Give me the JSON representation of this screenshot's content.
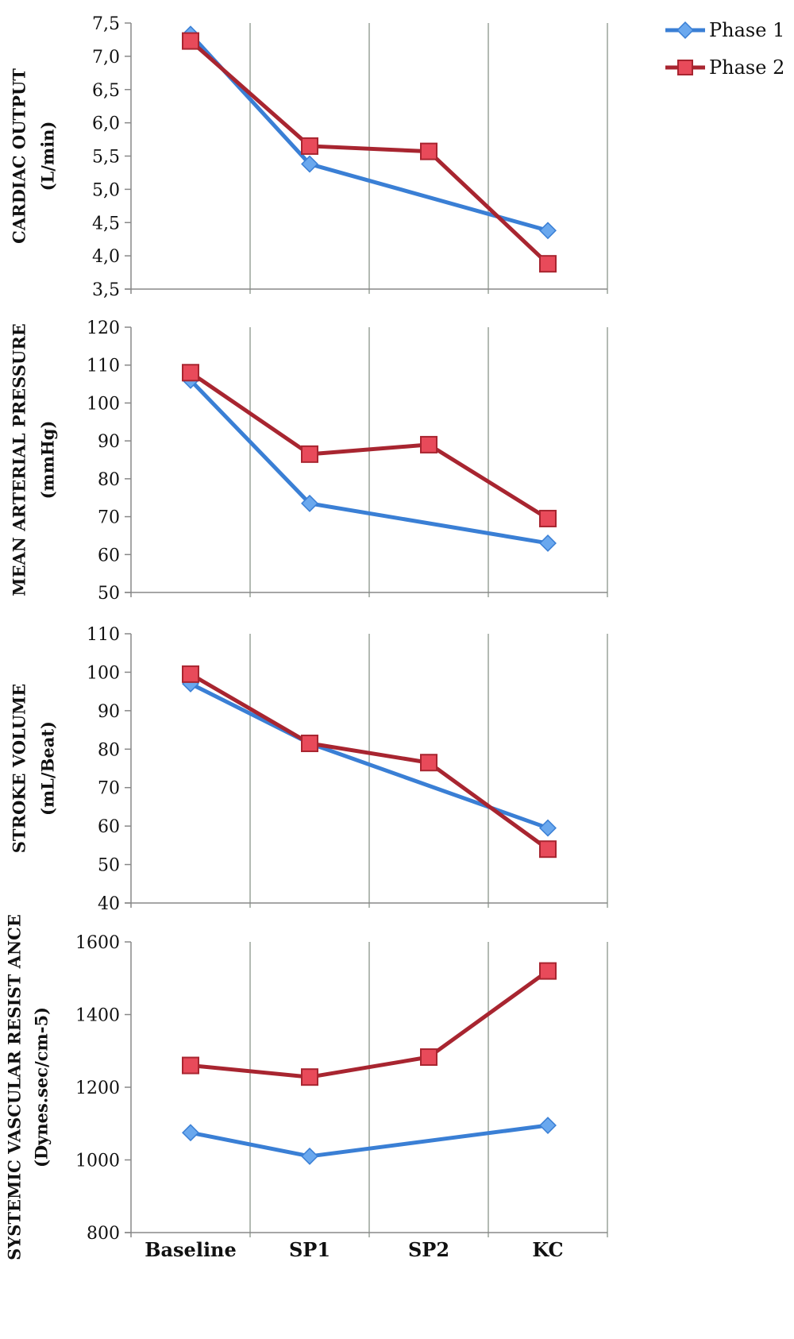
{
  "legend": [
    {
      "name": "Phase 1",
      "color": "#3a7fd5",
      "marker": "diamond"
    },
    {
      "name": "Phase 2",
      "color": "#a82530",
      "marker": "square"
    }
  ],
  "colors": {
    "grid": "#9aa39a",
    "axis": "#888888",
    "marker_blue": "#6aa8ee",
    "marker_red": "#e84a5a"
  },
  "chart_data": [
    {
      "type": "line",
      "categories": [
        "Baseline",
        "SP1",
        "SP2",
        "KC"
      ],
      "ylabel": [
        "CARDIAC OUTPUT",
        "(L/min)"
      ],
      "ylim": [
        3.5,
        7.5
      ],
      "yticks": [
        "3,5",
        "4,0",
        "4,5",
        "5,0",
        "5,5",
        "6,0",
        "6,5",
        "7,0",
        "7,5"
      ],
      "ytick_values": [
        3.5,
        4.0,
        4.5,
        5.0,
        5.5,
        6.0,
        6.5,
        7.0,
        7.5
      ],
      "show_category_labels": false,
      "series": [
        {
          "name": "Phase 1",
          "values": [
            7.33,
            5.38,
            null,
            4.38
          ]
        },
        {
          "name": "Phase 2",
          "values": [
            7.23,
            5.65,
            5.57,
            3.88
          ]
        }
      ]
    },
    {
      "type": "line",
      "categories": [
        "Baseline",
        "SP1",
        "SP2",
        "KC"
      ],
      "ylabel": [
        "MEAN ARTERIAL PRESSURE",
        "(mmHg)"
      ],
      "ylim": [
        50,
        120
      ],
      "yticks": [
        "50",
        "60",
        "70",
        "80",
        "90",
        "100",
        "110",
        "120"
      ],
      "ytick_values": [
        50,
        60,
        70,
        80,
        90,
        100,
        110,
        120
      ],
      "show_category_labels": false,
      "series": [
        {
          "name": "Phase 1",
          "values": [
            106,
            73.5,
            null,
            63
          ]
        },
        {
          "name": "Phase 2",
          "values": [
            108,
            86.5,
            89,
            69.5
          ]
        }
      ]
    },
    {
      "type": "line",
      "categories": [
        "Baseline",
        "SP1",
        "SP2",
        "KC"
      ],
      "ylabel": [
        "STROKE VOLUME",
        "(mL/Beat)"
      ],
      "ylim": [
        40,
        110
      ],
      "yticks": [
        "40",
        "50",
        "60",
        "70",
        "80",
        "90",
        "100",
        "110"
      ],
      "ytick_values": [
        40,
        50,
        60,
        70,
        80,
        90,
        100,
        110
      ],
      "show_category_labels": false,
      "series": [
        {
          "name": "Phase 1",
          "values": [
            97,
            81.5,
            null,
            59.5
          ]
        },
        {
          "name": "Phase 2",
          "values": [
            99.5,
            81.5,
            76.5,
            54
          ]
        }
      ]
    },
    {
      "type": "line",
      "categories": [
        "Baseline",
        "SP1",
        "SP2",
        "KC"
      ],
      "ylabel": [
        "SYSTEMIC VASCULAR RESIST ANCE",
        "(Dynes.sec/cm-5)"
      ],
      "ylim": [
        800,
        1600
      ],
      "yticks": [
        "800",
        "1000",
        "1200",
        "1400",
        "1600"
      ],
      "ytick_values": [
        800,
        1000,
        1200,
        1400,
        1600
      ],
      "show_category_labels": true,
      "series": [
        {
          "name": "Phase 1",
          "values": [
            1075,
            1010,
            null,
            1095
          ]
        },
        {
          "name": "Phase 2",
          "values": [
            1260,
            1228,
            1283,
            1520
          ]
        }
      ]
    }
  ]
}
